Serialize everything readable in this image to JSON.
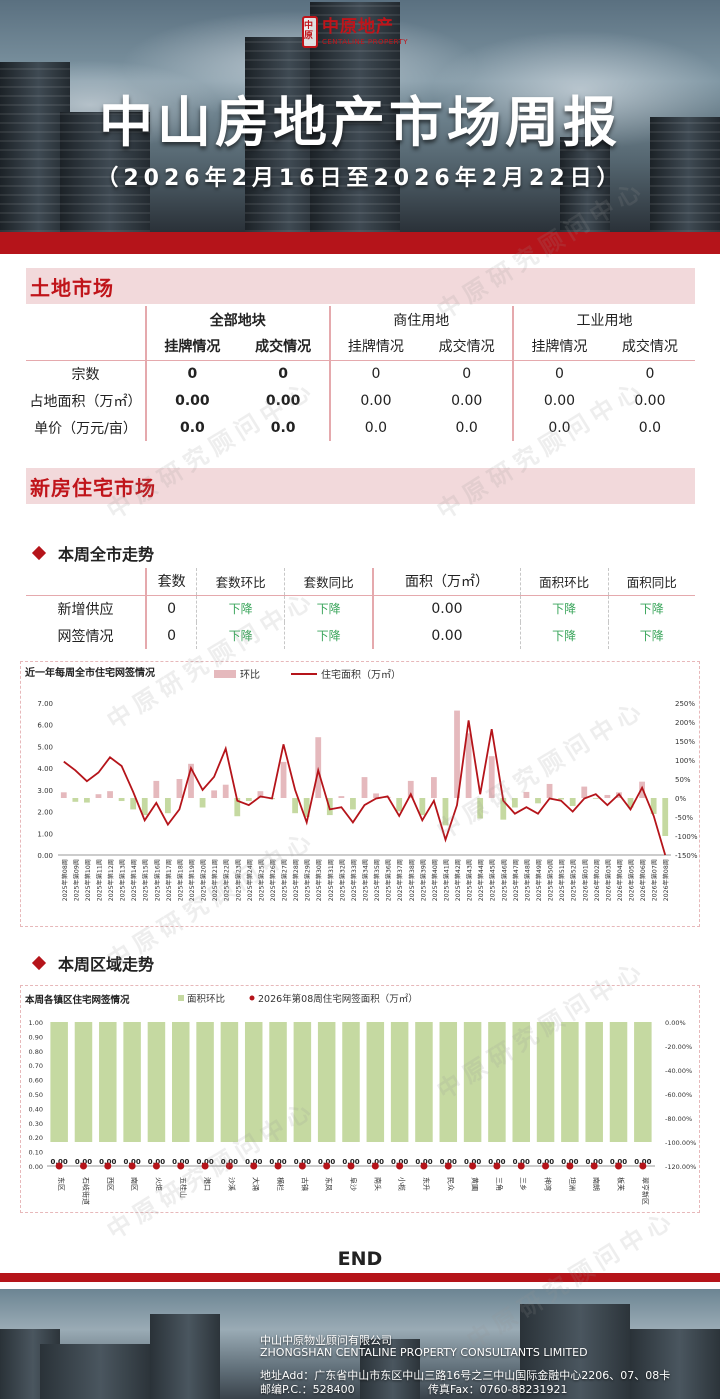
{
  "header": {
    "logo_char": "中原",
    "logo_name": "中原地产",
    "logo_en": "CENTALINE PROPERTY",
    "title": "中山房地产市场周报",
    "date_range": "（2026年2月16日至2026年2月22日）"
  },
  "land": {
    "section_title": "土地市场",
    "groups": [
      "全部地块",
      "商住用地",
      "工业用地"
    ],
    "sub_headers": [
      "挂牌情况",
      "成交情况",
      "挂牌情况",
      "成交情况",
      "挂牌情况",
      "成交情况"
    ],
    "rows": [
      {
        "label": "宗数",
        "values": [
          "0",
          "0",
          "0",
          "0",
          "0",
          "0"
        ]
      },
      {
        "label": "占地面积（万㎡）",
        "values": [
          "0.00",
          "0.00",
          "0.00",
          "0.00",
          "0.00",
          "0.00"
        ]
      },
      {
        "label": "单价（万元/亩）",
        "values": [
          "0.0",
          "0.0",
          "0.0",
          "0.0",
          "0.0",
          "0.0"
        ]
      }
    ]
  },
  "new_home": {
    "section_title": "新房住宅市场",
    "city_title": "本周全市走势",
    "headers": [
      "套数",
      "套数环比",
      "套数同比",
      "面积（万㎡）",
      "面积环比",
      "面积同比"
    ],
    "rows": [
      {
        "label": "新增供应",
        "values": [
          "0",
          "下降",
          "下降",
          "0.00",
          "下降",
          "下降"
        ]
      },
      {
        "label": "网签情况",
        "values": [
          "0",
          "下降",
          "下降",
          "0.00",
          "下降",
          "下降"
        ]
      }
    ],
    "district_title": "本周区域走势"
  },
  "chart_data": [
    {
      "type": "bar+line",
      "title": "近一年每周全市住宅网签情况",
      "legend": [
        "环比",
        "住宅面积（万㎡）"
      ],
      "categories": [
        "2025年第08周",
        "2025年第09周",
        "2025年第10周",
        "2025年第11周",
        "2025年第12周",
        "2025年第13周",
        "2025年第14周",
        "2025年第15周",
        "2025年第16周",
        "2025年第17周",
        "2025年第18周",
        "2025年第19周",
        "2025年第20周",
        "2025年第21周",
        "2025年第22周",
        "2025年第23周",
        "2025年第24周",
        "2025年第25周",
        "2025年第26周",
        "2025年第27周",
        "2025年第28周",
        "2025年第29周",
        "2025年第30周",
        "2025年第31周",
        "2025年第32周",
        "2025年第33周",
        "2025年第34周",
        "2025年第35周",
        "2025年第36周",
        "2025年第37周",
        "2025年第38周",
        "2025年第39周",
        "2025年第40周",
        "2025年第41周",
        "2025年第42周",
        "2025年第43周",
        "2025年第44周",
        "2025年第45周",
        "2025年第46周",
        "2025年第47周",
        "2025年第48周",
        "2025年第49周",
        "2025年第50周",
        "2025年第51周",
        "2025年第52周",
        "2026年第01周",
        "2026年第02周",
        "2026年第03周",
        "2026年第04周",
        "2026年第05周",
        "2026年第06周",
        "2026年第07周",
        "2026年第08周"
      ],
      "series": [
        {
          "name": "住宅面积（万㎡）",
          "axis": "left",
          "kind": "line",
          "color": "#b5141a",
          "values": [
            4.3,
            3.9,
            3.4,
            3.8,
            4.5,
            4.1,
            2.9,
            1.6,
            2.4,
            1.4,
            2.1,
            4.0,
            3.0,
            3.6,
            4.9,
            2.5,
            2.3,
            2.7,
            2.6,
            5.1,
            3.0,
            1.5,
            3.9,
            2.1,
            2.2,
            1.5,
            2.3,
            2.6,
            2.7,
            1.8,
            2.8,
            1.6,
            2.5,
            0.7,
            2.3,
            6.2,
            2.8,
            5.8,
            2.5,
            1.9,
            2.2,
            1.9,
            2.6,
            2.5,
            2.0,
            2.6,
            2.8,
            2.3,
            2.8,
            2.1,
            3.1,
            1.8,
            0.0
          ]
        },
        {
          "name": "环比",
          "axis": "right",
          "kind": "bar",
          "color": "#e5b9bd",
          "color_neg": "#c5d9a1",
          "values": [
            15,
            -10,
            -12,
            10,
            18,
            -8,
            -30,
            -45,
            45,
            -40,
            50,
            90,
            -25,
            20,
            35,
            -48,
            -8,
            18,
            -3,
            95,
            -40,
            -50,
            160,
            -45,
            5,
            -30,
            55,
            12,
            3,
            -35,
            45,
            -45,
            55,
            -72,
            230,
            170,
            -54,
            110,
            -57,
            -25,
            16,
            -14,
            37,
            -4,
            -21,
            30,
            -2,
            8,
            15,
            -25,
            43,
            -42,
            -100
          ]
        }
      ],
      "ylim_left": [
        0.0,
        7.0
      ],
      "ylim_right": [
        -150,
        250
      ],
      "y_left_ticks": [
        "7.00",
        "6.00",
        "5.00",
        "4.00",
        "3.00",
        "2.00",
        "1.00",
        "0.00"
      ],
      "y_right_ticks": [
        "250%",
        "200%",
        "150%",
        "100%",
        "50%",
        "0%",
        "-50%",
        "-100%",
        "-150%"
      ]
    },
    {
      "type": "bar+scatter",
      "title": "本周各镇区住宅网签情况",
      "legend": [
        "面积环比",
        "2026年第08周住宅网签面积（万㎡）"
      ],
      "categories": [
        "东区",
        "石岐街道",
        "西区",
        "南区",
        "火炬",
        "五桂山",
        "港口",
        "沙溪",
        "大涌",
        "横栏",
        "古镇",
        "东凤",
        "阜沙",
        "南头",
        "小榄",
        "东升",
        "民众",
        "黄圃",
        "三角",
        "三乡",
        "神湾",
        "坦洲",
        "南朗",
        "板芙",
        "翠亨新区"
      ],
      "series": [
        {
          "name": "2026年第08周住宅网签面积（万㎡）",
          "axis": "left",
          "kind": "scatter",
          "color": "#b5141a",
          "values": [
            0,
            0,
            0,
            0,
            0,
            0,
            0,
            0,
            0,
            0,
            0,
            0,
            0,
            0,
            0,
            0,
            0,
            0,
            0,
            0,
            0,
            0,
            0,
            0,
            0
          ]
        },
        {
          "name": "面积环比",
          "axis": "right",
          "kind": "bar",
          "color": "#c5d9a1",
          "values": [
            -100,
            -100,
            -100,
            -100,
            -100,
            -100,
            -100,
            -100,
            -100,
            -100,
            -100,
            -100,
            -100,
            -100,
            -100,
            -100,
            -100,
            -100,
            -100,
            -100,
            -100,
            -100,
            -100,
            -100,
            -100
          ]
        }
      ],
      "data_labels": [
        "0.00",
        "0.00",
        "0.00",
        "0.00",
        "0.00",
        "0.00",
        "0.00",
        "0.00",
        "0.00",
        "0.00",
        "0.00",
        "0.00",
        "0.00",
        "0.00",
        "0.00",
        "0.00",
        "0.00",
        "0.00",
        "0.00",
        "0.00",
        "0.00",
        "0.00",
        "0.00",
        "0.00",
        "0.00"
      ],
      "ylim_left": [
        0.0,
        1.0
      ],
      "ylim_right": [
        -120,
        0
      ],
      "y_left_ticks": [
        "1.00",
        "0.90",
        "0.80",
        "0.70",
        "0.60",
        "0.50",
        "0.40",
        "0.30",
        "0.20",
        "0.10",
        "0.00"
      ],
      "y_right_ticks": [
        "0.00%",
        "-20.00%",
        "-40.00%",
        "-60.00%",
        "-80.00%",
        "-100.00%",
        "-120.00%"
      ]
    }
  ],
  "end_text": "END",
  "footer": {
    "company_cn": "中山中原物业顾问有限公司",
    "company_en": "ZHONGSHAN CENTALINE PROPERTY CONSULTANTS LIMITED",
    "address": "地址Add：广东省中山市东区中山三路16号之三中山国际金融中心2206、07、08卡",
    "postcode": "邮编P.C.：528400",
    "fax": "传真Fax：0760-88231921"
  },
  "watermark": "中原研究顾问中心"
}
